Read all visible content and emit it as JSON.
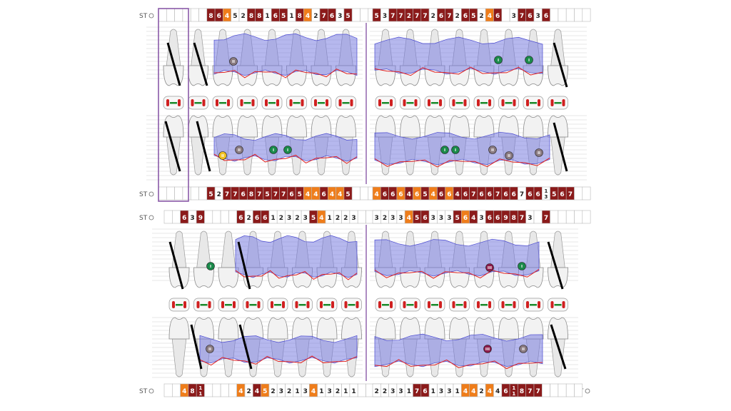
{
  "st_label": "ST",
  "colors": {
    "dark": "#8b1a1a",
    "orange": "#ef7d1a",
    "white": "#ffffff",
    "bone": "#7a7ee0",
    "gum": "#e02020",
    "implant": "#000000",
    "furcation_grade1": "#1a8a4a",
    "furcation_grade2": "#8a7a80",
    "furcation_grade3": "#8b1a4a",
    "furcation_grade2_yellow": "#f0c020"
  },
  "panels": [
    {
      "id": "top",
      "upper_left_cells": [
        "",
        "",
        "",
        "",
        "",
        "",
        "8",
        "6",
        "4",
        "5",
        "2",
        "8",
        "8",
        "1",
        "6",
        "5",
        "1",
        "8",
        "4",
        "2",
        "7",
        "6",
        "3",
        "5",
        "",
        "",
        ""
      ],
      "upper_left_colors": [
        "w",
        "w",
        "w",
        "w",
        "w",
        "w",
        "d",
        "d",
        "o",
        "w",
        "w",
        "d",
        "d",
        "w",
        "d",
        "d",
        "w",
        "d",
        "o",
        "w",
        "d",
        "d",
        "w",
        "d",
        "w",
        "w",
        "w"
      ],
      "upper_right_cells": [
        "5",
        "3",
        "7",
        "7",
        "2",
        "7",
        "7",
        "2",
        "6",
        "7",
        "2",
        "6",
        "5",
        "2",
        "4",
        "6",
        "",
        "3",
        "7",
        "6",
        "3",
        "6",
        "",
        "",
        "",
        "",
        ""
      ],
      "upper_right_colors": [
        "d",
        "w",
        "d",
        "d",
        "d",
        "d",
        "d",
        "w",
        "d",
        "d",
        "w",
        "d",
        "d",
        "w",
        "o",
        "d",
        "w",
        "w",
        "d",
        "d",
        "w",
        "d",
        "w",
        "w",
        "w",
        "w",
        "w"
      ],
      "lower_left_cells": [
        "",
        "",
        "",
        "",
        "",
        "",
        "5",
        "2",
        "7",
        "7",
        "6",
        "8",
        "7",
        "5",
        "7",
        "7",
        "6",
        "5",
        "4",
        "4",
        "6",
        "4",
        "4",
        "5",
        "",
        "",
        ""
      ],
      "lower_left_colors": [
        "w",
        "w",
        "w",
        "w",
        "w",
        "w",
        "d",
        "w",
        "d",
        "d",
        "d",
        "d",
        "d",
        "d",
        "d",
        "d",
        "d",
        "d",
        "o",
        "o",
        "d",
        "o",
        "o",
        "d",
        "w",
        "w",
        "w"
      ],
      "lower_right_cells": [
        "4",
        "6",
        "6",
        "6",
        "4",
        "6",
        "5",
        "4",
        "6",
        "6",
        "4",
        "6",
        "7",
        "6",
        "6",
        "7",
        "6",
        "6",
        "7",
        "6",
        "6",
        "1/3",
        "5",
        "6",
        "7",
        "",
        ""
      ],
      "lower_right_colors": [
        "o",
        "d",
        "d",
        "o",
        "d",
        "o",
        "d",
        "o",
        "d",
        "o",
        "d",
        "d",
        "d",
        "d",
        "d",
        "d",
        "d",
        "d",
        "w",
        "d",
        "d",
        "w",
        "d",
        "d",
        "d",
        "w",
        "w"
      ]
    },
    {
      "id": "bottom",
      "upper_left_cells": [
        "",
        "",
        "6",
        "3",
        "9",
        "",
        "",
        "",
        "",
        "6",
        "2",
        "6",
        "6",
        "1",
        "2",
        "3",
        "2",
        "3",
        "5",
        "4",
        "1",
        "2",
        "2",
        "3",
        "",
        "",
        ""
      ],
      "upper_left_colors": [
        "w",
        "w",
        "d",
        "w",
        "d",
        "w",
        "w",
        "w",
        "w",
        "d",
        "w",
        "d",
        "d",
        "w",
        "w",
        "w",
        "w",
        "w",
        "d",
        "o",
        "w",
        "w",
        "w",
        "w",
        "w",
        "w",
        "w"
      ],
      "upper_right_cells": [
        "3",
        "2",
        "3",
        "3",
        "4",
        "5",
        "6",
        "3",
        "3",
        "3",
        "5",
        "6",
        "4",
        "3",
        "6",
        "6",
        "9",
        "8",
        "7",
        "3",
        "",
        "7",
        "",
        "",
        "",
        "",
        ""
      ],
      "upper_right_colors": [
        "w",
        "w",
        "w",
        "w",
        "o",
        "d",
        "d",
        "w",
        "w",
        "w",
        "d",
        "o",
        "d",
        "w",
        "d",
        "d",
        "d",
        "d",
        "d",
        "w",
        "w",
        "d",
        "w",
        "w",
        "w",
        "w",
        "w"
      ],
      "lower_left_cells": [
        "",
        "",
        "4",
        "8",
        "1/1",
        "",
        "",
        "",
        "",
        "4",
        "2",
        "4",
        "5",
        "2",
        "3",
        "2",
        "1",
        "3",
        "4",
        "1",
        "3",
        "2",
        "1",
        "1",
        "",
        "",
        ""
      ],
      "lower_left_colors": [
        "w",
        "w",
        "o",
        "d",
        "d",
        "w",
        "w",
        "w",
        "w",
        "o",
        "w",
        "d",
        "o",
        "w",
        "w",
        "w",
        "w",
        "w",
        "o",
        "w",
        "w",
        "w",
        "w",
        "w",
        "w",
        "w",
        "w"
      ],
      "lower_right_cells": [
        "2",
        "2",
        "3",
        "3",
        "1",
        "7",
        "6",
        "1",
        "3",
        "3",
        "1",
        "4",
        "4",
        "2",
        "4",
        "4",
        "6",
        "1/1",
        "8",
        "7",
        "7",
        "",
        "",
        "",
        "",
        ""
      ],
      "lower_right_colors": [
        "w",
        "w",
        "w",
        "w",
        "w",
        "d",
        "d",
        "w",
        "w",
        "w",
        "w",
        "o",
        "o",
        "w",
        "o",
        "w",
        "d",
        "d",
        "d",
        "d",
        "d",
        "w",
        "w",
        "w",
        "w",
        "w",
        "w"
      ]
    }
  ],
  "furcation_marks": [
    {
      "panel": "top",
      "label": "II",
      "grade": "grade2"
    },
    {
      "panel": "top",
      "label": "I",
      "grade": "grade1"
    },
    {
      "panel": "top",
      "label": "I",
      "grade": "grade1"
    },
    {
      "panel": "top",
      "label": "II",
      "grade": "grade2_yellow"
    },
    {
      "panel": "top",
      "label": "II",
      "grade": "grade2"
    },
    {
      "panel": "top",
      "label": "I",
      "grade": "grade1"
    },
    {
      "panel": "top",
      "label": "I",
      "grade": "grade1"
    },
    {
      "panel": "top",
      "label": "I",
      "grade": "grade1"
    },
    {
      "panel": "top",
      "label": "I",
      "grade": "grade1"
    },
    {
      "panel": "top",
      "label": "II",
      "grade": "grade2"
    },
    {
      "panel": "top",
      "label": "II",
      "grade": "grade2"
    },
    {
      "panel": "top",
      "label": "II",
      "grade": "grade2"
    },
    {
      "panel": "bottom",
      "label": "I",
      "grade": "grade1"
    },
    {
      "panel": "bottom",
      "label": "III",
      "grade": "grade3"
    },
    {
      "panel": "bottom",
      "label": "I",
      "grade": "grade1"
    },
    {
      "panel": "bottom",
      "label": "II",
      "grade": "grade2"
    },
    {
      "panel": "bottom",
      "label": "III",
      "grade": "grade3"
    },
    {
      "panel": "bottom",
      "label": "II",
      "grade": "grade2"
    }
  ]
}
